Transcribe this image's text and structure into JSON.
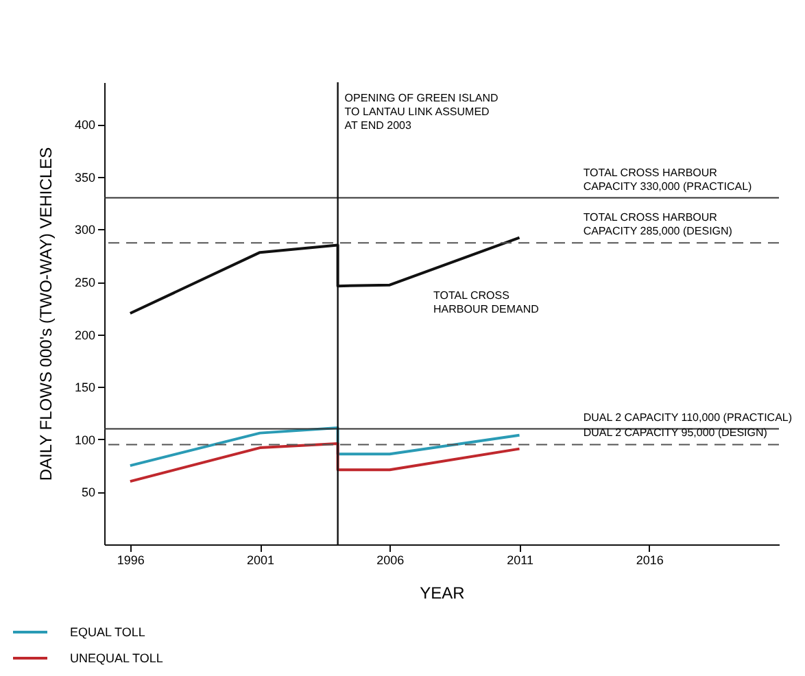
{
  "chart_data": {
    "type": "line",
    "xlabel": "YEAR",
    "ylabel": "DAILY FLOWS 000's (TWO-WAY) VEHICLES",
    "xlim": [
      1995,
      2021
    ],
    "xticks": [
      1996,
      2001,
      2006,
      2011,
      2016
    ],
    "ylim": [
      0,
      440
    ],
    "yticks": [
      50,
      100,
      150,
      200,
      250,
      300,
      350,
      400
    ],
    "grid": false,
    "legend": "bottom left",
    "marker": "none",
    "line_style": "solid",
    "series": [
      {
        "color": "#111111",
        "x": [
          1996,
          2001,
          2004,
          2004,
          2006,
          2011
        ],
        "values": [
          220,
          278,
          285,
          246,
          247,
          292
        ]
      },
      {
        "name": "EQUAL TOLL",
        "color": "#2a9bb5",
        "x": [
          1996,
          2001,
          2004,
          2004,
          2006,
          2011
        ],
        "values": [
          75,
          106,
          111,
          86,
          86,
          104
        ]
      },
      {
        "name": "UNEQUAL TOLL",
        "color": "#c0282d",
        "x": [
          1996,
          2001,
          2004,
          2004,
          2006,
          2011
        ],
        "values": [
          60,
          92,
          96,
          71,
          71,
          91
        ]
      }
    ],
    "ref_lines": [
      {
        "axis": "y",
        "value": 330,
        "label": "TOTAL CROSS HARBOUR\nCAPACITY 330,000 (PRACTICAL)",
        "color": "#333333",
        "line_style": "solid"
      },
      {
        "axis": "y",
        "value": 287,
        "label": "TOTAL CROSS HARBOUR\nCAPACITY 285,000 (DESIGN)",
        "color": "#555555",
        "line_style": "dashed"
      },
      {
        "axis": "y",
        "value": 110,
        "label": "DUAL 2 CAPACITY 110,000 (PRACTICAL)",
        "color": "#333333",
        "line_style": "solid"
      },
      {
        "axis": "y",
        "value": 95,
        "label": "DUAL 2 CAPACITY 95,000 (DESIGN)",
        "color": "#555555",
        "line_style": "dashed"
      },
      {
        "axis": "x",
        "value": 2004,
        "label": "OPENING OF GREEN ISLAND\nTO LANTAU LINK ASSUMED\nAT END 2003",
        "color": "#111111",
        "line_style": "solid"
      }
    ],
    "annotations": [
      "TOTAL CROSS\nHARBOUR DEMAND"
    ]
  }
}
